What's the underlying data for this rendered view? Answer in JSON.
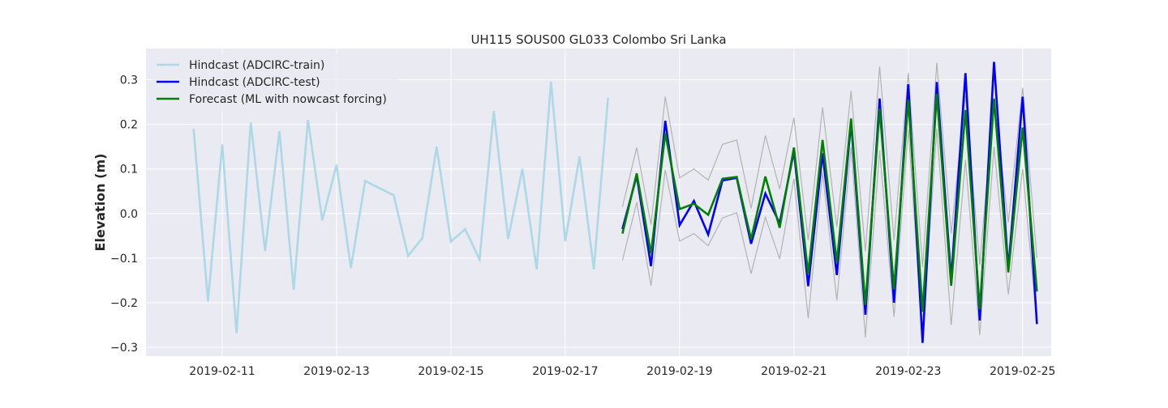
{
  "chart_data": {
    "type": "line",
    "title": "UH115 SOUS00 GL033 Colombo Sri Lanka",
    "xlabel": "",
    "ylabel": "Elevation (m)",
    "x_type": "date",
    "xlim": [
      "2019-02-09T16:00",
      "2019-02-25T12:00"
    ],
    "ylim": [
      -0.32,
      0.37
    ],
    "x_ticks": [
      "2019-02-11",
      "2019-02-13",
      "2019-02-15",
      "2019-02-17",
      "2019-02-19",
      "2019-02-21",
      "2019-02-23",
      "2019-02-25"
    ],
    "y_ticks": [
      -0.3,
      -0.2,
      -0.1,
      0.0,
      0.1,
      0.2,
      0.3
    ],
    "y_tick_labels": [
      "−0.3",
      "−0.2",
      "−0.1",
      "0.0",
      "0.1",
      "0.2",
      "0.3"
    ],
    "grid": true,
    "legend_position": "top-left",
    "colors": {
      "background": "#EAEAF2",
      "grid": "#FFFFFF",
      "train": "#ADD8E6",
      "test": "#0000FF",
      "forecast": "#008000",
      "bounds": "#B3B3B3"
    },
    "series": [
      {
        "name": "Hindcast (ADCIRC-train)",
        "color": "#ADD8E6",
        "x": [
          "2019-02-10T12:00",
          "2019-02-10T18:00",
          "2019-02-11T00:00",
          "2019-02-11T06:00",
          "2019-02-11T12:00",
          "2019-02-11T18:00",
          "2019-02-12T00:00",
          "2019-02-12T06:00",
          "2019-02-12T12:00",
          "2019-02-12T18:00",
          "2019-02-13T00:00",
          "2019-02-13T06:00",
          "2019-02-13T12:00",
          "2019-02-14T00:00",
          "2019-02-14T06:00",
          "2019-02-14T12:00",
          "2019-02-14T18:00",
          "2019-02-15T00:00",
          "2019-02-15T06:00",
          "2019-02-15T12:00",
          "2019-02-15T18:00",
          "2019-02-16T00:00",
          "2019-02-16T06:00",
          "2019-02-16T12:00",
          "2019-02-16T18:00",
          "2019-02-17T00:00",
          "2019-02-17T06:00",
          "2019-02-17T12:00",
          "2019-02-17T18:00"
        ],
        "values": [
          0.19,
          -0.197,
          0.155,
          -0.268,
          0.204,
          -0.084,
          0.185,
          -0.171,
          0.21,
          -0.015,
          0.109,
          -0.122,
          0.073,
          0.041,
          -0.095,
          -0.055,
          0.15,
          -0.063,
          -0.035,
          -0.103,
          0.23,
          -0.057,
          0.1,
          -0.125,
          0.296,
          -0.062,
          0.128,
          -0.125,
          0.26
        ]
      },
      {
        "name": "Hindcast (ADCIRC-test)",
        "color": "#0000FF",
        "x": [
          "2019-02-18T00:00",
          "2019-02-18T06:00",
          "2019-02-18T12:00",
          "2019-02-18T18:00",
          "2019-02-19T00:00",
          "2019-02-19T06:00",
          "2019-02-19T12:00",
          "2019-02-19T18:00",
          "2019-02-20T00:00",
          "2019-02-20T06:00",
          "2019-02-20T12:00",
          "2019-02-20T18:00",
          "2019-02-21T00:00",
          "2019-02-21T06:00",
          "2019-02-21T12:00",
          "2019-02-21T18:00",
          "2019-02-22T00:00",
          "2019-02-22T06:00",
          "2019-02-22T12:00",
          "2019-02-22T18:00",
          "2019-02-23T00:00",
          "2019-02-23T06:00",
          "2019-02-23T12:00",
          "2019-02-23T18:00",
          "2019-02-24T00:00",
          "2019-02-24T06:00",
          "2019-02-24T12:00",
          "2019-02-24T18:00",
          "2019-02-25T00:00",
          "2019-02-25T06:00"
        ],
        "values": [
          -0.035,
          0.085,
          -0.118,
          0.208,
          -0.026,
          0.028,
          -0.047,
          0.074,
          0.08,
          -0.068,
          0.045,
          -0.022,
          0.14,
          -0.163,
          0.135,
          -0.138,
          0.205,
          -0.227,
          0.258,
          -0.2,
          0.29,
          -0.29,
          0.295,
          -0.148,
          0.315,
          -0.24,
          0.34,
          -0.125,
          0.262,
          -0.248
        ]
      },
      {
        "name": "Forecast (ML with nowcast forcing)",
        "color": "#008000",
        "x": [
          "2019-02-18T00:00",
          "2019-02-18T06:00",
          "2019-02-18T12:00",
          "2019-02-18T18:00",
          "2019-02-19T00:00",
          "2019-02-19T06:00",
          "2019-02-19T12:00",
          "2019-02-19T18:00",
          "2019-02-20T00:00",
          "2019-02-20T06:00",
          "2019-02-20T12:00",
          "2019-02-20T18:00",
          "2019-02-21T00:00",
          "2019-02-21T06:00",
          "2019-02-21T12:00",
          "2019-02-21T18:00",
          "2019-02-22T00:00",
          "2019-02-22T06:00",
          "2019-02-22T12:00",
          "2019-02-22T18:00",
          "2019-02-23T00:00",
          "2019-02-23T06:00",
          "2019-02-23T12:00",
          "2019-02-23T18:00",
          "2019-02-24T00:00",
          "2019-02-24T06:00",
          "2019-02-24T12:00",
          "2019-02-24T18:00",
          "2019-02-25T00:00",
          "2019-02-25T06:00"
        ],
        "values": [
          -0.045,
          0.09,
          -0.09,
          0.18,
          0.01,
          0.022,
          -0.003,
          0.078,
          0.082,
          -0.058,
          0.083,
          -0.032,
          0.148,
          -0.135,
          0.165,
          -0.11,
          0.213,
          -0.205,
          0.235,
          -0.17,
          0.255,
          -0.22,
          0.268,
          -0.162,
          0.232,
          -0.215,
          0.258,
          -0.132,
          0.193,
          -0.175
        ]
      },
      {
        "color": "#B3B3B3",
        "x": [
          "2019-02-18T00:00",
          "2019-02-18T06:00",
          "2019-02-18T12:00",
          "2019-02-18T18:00",
          "2019-02-19T00:00",
          "2019-02-19T06:00",
          "2019-02-19T12:00",
          "2019-02-19T18:00",
          "2019-02-20T00:00",
          "2019-02-20T06:00",
          "2019-02-20T12:00",
          "2019-02-20T18:00",
          "2019-02-21T00:00",
          "2019-02-21T06:00",
          "2019-02-21T12:00",
          "2019-02-21T18:00",
          "2019-02-22T00:00",
          "2019-02-22T06:00",
          "2019-02-22T12:00",
          "2019-02-22T18:00",
          "2019-02-23T00:00",
          "2019-02-23T06:00",
          "2019-02-23T12:00",
          "2019-02-23T18:00",
          "2019-02-24T00:00",
          "2019-02-24T06:00",
          "2019-02-24T12:00",
          "2019-02-24T18:00",
          "2019-02-25T00:00",
          "2019-02-25T06:00"
        ],
        "values": [
          0.015,
          0.148,
          -0.025,
          0.262,
          0.08,
          0.1,
          0.075,
          0.155,
          0.165,
          0.012,
          0.175,
          0.055,
          0.215,
          -0.06,
          0.238,
          -0.03,
          0.275,
          -0.085,
          0.33,
          -0.06,
          0.315,
          -0.12,
          0.338,
          -0.045,
          0.265,
          -0.115,
          0.255,
          -0.02,
          0.282,
          -0.1
        ]
      },
      {
        "color": "#B3B3B3",
        "x": [
          "2019-02-18T00:00",
          "2019-02-18T06:00",
          "2019-02-18T12:00",
          "2019-02-18T18:00",
          "2019-02-19T00:00",
          "2019-02-19T06:00",
          "2019-02-19T12:00",
          "2019-02-19T18:00",
          "2019-02-20T00:00",
          "2019-02-20T06:00",
          "2019-02-20T12:00",
          "2019-02-20T18:00",
          "2019-02-21T00:00",
          "2019-02-21T06:00",
          "2019-02-21T12:00",
          "2019-02-21T18:00",
          "2019-02-22T00:00",
          "2019-02-22T06:00",
          "2019-02-22T12:00",
          "2019-02-22T18:00",
          "2019-02-23T00:00",
          "2019-02-23T06:00",
          "2019-02-23T12:00",
          "2019-02-23T18:00",
          "2019-02-24T00:00",
          "2019-02-24T06:00",
          "2019-02-24T12:00",
          "2019-02-24T18:00",
          "2019-02-25T00:00",
          "2019-02-25T06:00"
        ],
        "values": [
          -0.105,
          0.025,
          -0.162,
          0.098,
          -0.062,
          -0.045,
          -0.072,
          -0.01,
          0.002,
          -0.135,
          -0.008,
          -0.102,
          0.078,
          -0.235,
          0.092,
          -0.195,
          0.148,
          -0.278,
          0.142,
          -0.232,
          0.188,
          -0.275,
          0.19,
          -0.25,
          0.12,
          -0.272,
          0.15,
          -0.182,
          0.1,
          -0.248
        ]
      }
    ]
  }
}
